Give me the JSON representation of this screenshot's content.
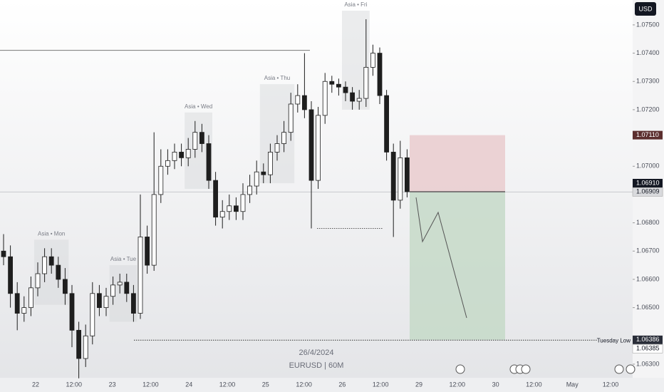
{
  "chart_data": {
    "type": "candlestick",
    "symbol_label": "EURUSD | 60M",
    "date_label": "26/4/2024",
    "currency": "USD",
    "ohlc": {
      "open": [
        1.067,
        1.0668,
        1.0655,
        1.0648,
        1.065,
        1.0657,
        1.0662,
        1.0668,
        1.0665,
        1.066,
        1.0655,
        1.0642,
        1.0632,
        1.064,
        1.0655,
        1.065,
        1.0654,
        1.0658,
        1.0659,
        1.0655,
        1.0648,
        1.0675,
        1.0665,
        1.069,
        1.07,
        1.0702,
        1.0705,
        1.0703,
        1.0706,
        1.0712,
        1.0708,
        1.0695,
        1.0682,
        1.0684,
        1.0686,
        1.0684,
        1.069,
        1.0693,
        1.0698,
        1.0697,
        1.0705,
        1.0708,
        1.0712,
        1.0722,
        1.0725,
        1.072,
        1.0695,
        1.0718,
        1.073,
        1.0729,
        1.0728,
        1.0726,
        1.0723,
        1.0724,
        1.0735,
        1.074,
        1.0725,
        1.0705,
        1.0688,
        1.0703
      ],
      "high": [
        1.0676,
        1.0672,
        1.0659,
        1.0654,
        1.0661,
        1.0666,
        1.0671,
        1.0671,
        1.0668,
        1.0664,
        1.0658,
        1.0645,
        1.0644,
        1.0659,
        1.0658,
        1.0657,
        1.0661,
        1.0662,
        1.0662,
        1.0658,
        1.069,
        1.0679,
        1.0712,
        1.0706,
        1.0706,
        1.0708,
        1.0708,
        1.071,
        1.0716,
        1.0715,
        1.0711,
        1.0698,
        1.0688,
        1.069,
        1.0689,
        1.0694,
        1.0697,
        1.0702,
        1.0701,
        1.0708,
        1.0711,
        1.0716,
        1.0726,
        1.0729,
        1.074,
        1.0723,
        1.0721,
        1.0733,
        1.0732,
        1.0731,
        1.073,
        1.0728,
        1.0727,
        1.0752,
        1.0743,
        1.0742,
        1.0727,
        1.0708,
        1.0709,
        1.0706
      ],
      "low": [
        1.0665,
        1.065,
        1.0642,
        1.0645,
        1.0647,
        1.0654,
        1.0659,
        1.0662,
        1.0657,
        1.0651,
        1.0636,
        1.0625,
        1.0629,
        1.0637,
        1.0647,
        1.0647,
        1.0651,
        1.0655,
        1.0652,
        1.0645,
        1.0646,
        1.0662,
        1.0663,
        1.0687,
        1.0697,
        1.0699,
        1.07,
        1.07,
        1.0703,
        1.0705,
        1.0692,
        1.0679,
        1.0678,
        1.0681,
        1.0681,
        1.0681,
        1.0687,
        1.069,
        1.0694,
        1.0694,
        1.0702,
        1.0705,
        1.0709,
        1.0719,
        1.0717,
        1.0678,
        1.0692,
        1.0715,
        1.0726,
        1.0725,
        1.0723,
        1.072,
        1.072,
        1.0721,
        1.0732,
        1.0722,
        1.0702,
        1.0675,
        1.0685,
        1.0689
      ],
      "close": [
        1.0668,
        1.0655,
        1.0648,
        1.065,
        1.0657,
        1.0662,
        1.0668,
        1.0665,
        1.066,
        1.0655,
        1.0642,
        1.0632,
        1.064,
        1.0655,
        1.065,
        1.0654,
        1.0658,
        1.0659,
        1.0655,
        1.0648,
        1.0675,
        1.0665,
        1.069,
        1.07,
        1.0702,
        1.0705,
        1.0703,
        1.0706,
        1.0712,
        1.0708,
        1.0695,
        1.0682,
        1.0684,
        1.0686,
        1.0684,
        1.069,
        1.0693,
        1.0698,
        1.0697,
        1.0705,
        1.0708,
        1.0712,
        1.0722,
        1.0725,
        1.072,
        1.0695,
        1.0718,
        1.073,
        1.0729,
        1.0728,
        1.0726,
        1.0723,
        1.0724,
        1.0735,
        1.074,
        1.0725,
        1.0705,
        1.0688,
        1.0703,
        1.0691
      ]
    },
    "ylim": [
      1.06252,
      1.07588
    ],
    "yticks": [
      {
        "value": 1.075,
        "label": "1.07500"
      },
      {
        "value": 1.074,
        "label": "1.07400"
      },
      {
        "value": 1.073,
        "label": "1.07300"
      },
      {
        "value": 1.072,
        "label": "1.07200"
      },
      {
        "value": 1.07,
        "label": "1.07000"
      },
      {
        "value": 1.068,
        "label": "1.06800"
      },
      {
        "value": 1.067,
        "label": "1.06700"
      },
      {
        "value": 1.066,
        "label": "1.06600"
      },
      {
        "value": 1.065,
        "label": "1.06500"
      },
      {
        "value": 1.063,
        "label": "1.06300"
      }
    ],
    "xtick_labels": [
      "22",
      "12:00",
      "23",
      "12:00",
      "24",
      "12:00",
      "25",
      "12:00",
      "26",
      "12:00",
      "29",
      "12:00",
      "30",
      "12:00",
      "May",
      "12:00"
    ],
    "sessions": [
      "Asia • Mon",
      "Asia • Tue",
      "Asia • Wed",
      "Asia • Thu",
      "Asia • Fri"
    ],
    "position": {
      "stop": 1.0711,
      "entry": 1.0691,
      "target": 1.06386
    },
    "levels": [
      1.0741,
      1.0678
    ],
    "annotation": {
      "text": "Tuesday Low",
      "value": 1.06385
    },
    "price_badges": [
      {
        "value": 1.0711,
        "label": "1.07110",
        "color": "#5c2f2f"
      },
      {
        "value": 1.0691,
        "label": "1.06910",
        "color": "#131722"
      },
      {
        "value": 1.06909,
        "label": "1.06909",
        "color": "#d9dadd"
      },
      {
        "value": 1.06386,
        "label": "1.06386",
        "color": "#2a2e39"
      },
      {
        "value": 1.06385,
        "label": "1.06385",
        "color": "#ffffff"
      }
    ],
    "colors": {
      "up": "#ffffff",
      "down": "#1e1e1e",
      "outline": "#1e1e1e",
      "stop_zone": "#e8c9cc",
      "target_zone": "#c3d8c5"
    }
  }
}
